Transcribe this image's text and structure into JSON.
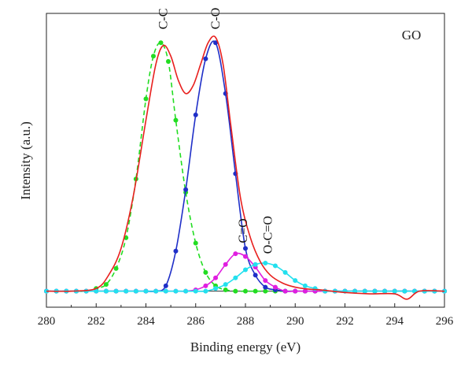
{
  "chart_data": {
    "type": "line",
    "title": "",
    "sample_label": "GO",
    "xlabel": "Binding energy (eV)",
    "ylabel": "Intensity (a.u.)",
    "xlim": [
      280,
      296
    ],
    "ylim": [
      -0.06,
      1.04
    ],
    "x_ticks": [
      "280",
      "282",
      "284",
      "286",
      "288",
      "290",
      "292",
      "294",
      "296"
    ],
    "peak_labels": [
      {
        "text": "C-C",
        "x": 284.7,
        "y": 0.98
      },
      {
        "text": "C-O",
        "x": 286.8,
        "y": 0.98
      },
      {
        "text": "C=O",
        "x": 287.9,
        "y": 0.18
      },
      {
        "text": "O-C=O",
        "x": 288.9,
        "y": 0.14
      }
    ],
    "grid": false,
    "envelope": {
      "color": "#e8201e",
      "x": [
        280.0,
        281.0,
        282.0,
        282.5,
        283.0,
        283.5,
        284.0,
        284.4,
        284.7,
        285.0,
        285.3,
        285.6,
        285.9,
        286.2,
        286.5,
        286.8,
        287.1,
        287.4,
        287.8,
        288.2,
        288.6,
        289.0,
        289.5,
        290.0,
        290.5,
        291.0,
        292.0,
        293.0,
        294.0,
        294.5,
        295.0,
        296.0
      ],
      "y": [
        0.0,
        0.0,
        0.01,
        0.06,
        0.16,
        0.36,
        0.64,
        0.85,
        0.92,
        0.88,
        0.79,
        0.74,
        0.77,
        0.85,
        0.93,
        0.95,
        0.85,
        0.63,
        0.35,
        0.2,
        0.11,
        0.06,
        0.03,
        0.015,
        0.008,
        0.005,
        -0.005,
        -0.01,
        -0.01,
        -0.03,
        0.0,
        0.0
      ]
    },
    "series": [
      {
        "name": "C-C",
        "color": "#22dd22",
        "dashed": true,
        "x": [
          280.0,
          280.4,
          280.8,
          281.2,
          281.6,
          282.0,
          282.4,
          282.8,
          283.2,
          283.6,
          284.0,
          284.3,
          284.6,
          284.9,
          285.2,
          285.6,
          286.0,
          286.4,
          286.8,
          287.2,
          287.6,
          288.0,
          288.4,
          288.8,
          289.2,
          289.6,
          290.0,
          290.4,
          290.8,
          291.2,
          291.6,
          292.0,
          292.4,
          292.8,
          293.2,
          293.6,
          294.0,
          294.4,
          294.8,
          295.2,
          295.6,
          296.0
        ],
        "y": [
          0.0,
          0.0,
          0.0,
          0.0,
          0.0,
          0.01,
          0.025,
          0.085,
          0.2,
          0.42,
          0.72,
          0.88,
          0.93,
          0.86,
          0.64,
          0.37,
          0.18,
          0.07,
          0.02,
          0.005,
          0.0,
          0.0,
          0.0,
          0.0,
          0.0,
          0.0,
          0.0,
          0.0,
          0.0,
          0.0,
          0.0,
          0.0,
          0.0,
          0.0,
          0.0,
          0.0,
          0.0,
          0.0,
          0.0,
          0.0,
          0.0,
          0.0
        ]
      },
      {
        "name": "C-O",
        "color": "#1f2fc8",
        "dashed": false,
        "x": [
          280.0,
          280.4,
          280.8,
          281.2,
          281.6,
          282.0,
          282.4,
          282.8,
          283.2,
          283.6,
          284.0,
          284.4,
          284.8,
          285.2,
          285.6,
          286.0,
          286.4,
          286.8,
          287.2,
          287.6,
          288.0,
          288.4,
          288.8,
          289.2,
          289.6,
          290.0,
          290.4,
          290.8,
          291.2,
          291.6,
          292.0,
          292.4,
          292.8,
          293.2,
          293.6,
          294.0,
          294.4,
          294.8,
          295.2,
          295.6,
          296.0
        ],
        "y": [
          0.0,
          0.0,
          0.0,
          0.0,
          0.0,
          0.0,
          0.0,
          0.0,
          0.0,
          0.0,
          0.0,
          0.0,
          0.02,
          0.15,
          0.38,
          0.66,
          0.87,
          0.93,
          0.74,
          0.44,
          0.16,
          0.06,
          0.015,
          0.005,
          0.0,
          0.0,
          0.0,
          0.0,
          0.0,
          0.0,
          0.0,
          0.0,
          0.0,
          0.0,
          0.0,
          0.0,
          0.0,
          0.0,
          0.0,
          0.0,
          0.0
        ]
      },
      {
        "name": "C=O",
        "color": "#e01ee0",
        "dashed": false,
        "x": [
          280.0,
          280.4,
          280.8,
          281.2,
          281.6,
          282.0,
          282.4,
          282.8,
          283.2,
          283.6,
          284.0,
          284.4,
          284.8,
          285.2,
          285.6,
          286.0,
          286.4,
          286.8,
          287.2,
          287.6,
          288.0,
          288.4,
          288.8,
          289.2,
          289.6,
          290.0,
          290.4,
          290.8,
          291.2,
          291.6,
          292.0,
          292.4,
          292.8,
          293.2,
          293.6,
          294.0,
          294.4,
          294.8,
          295.2,
          295.6,
          296.0
        ],
        "y": [
          0.0,
          0.0,
          0.0,
          0.0,
          0.0,
          0.0,
          0.0,
          0.0,
          0.0,
          0.0,
          0.0,
          0.0,
          0.0,
          0.0,
          0.0,
          0.005,
          0.02,
          0.05,
          0.1,
          0.14,
          0.13,
          0.09,
          0.04,
          0.015,
          0.0,
          0.0,
          0.0,
          0.0,
          0.0,
          0.0,
          0.0,
          0.0,
          0.0,
          0.0,
          0.0,
          0.0,
          0.0,
          0.0,
          0.0,
          0.0,
          0.0
        ]
      },
      {
        "name": "O-C=O",
        "color": "#22e0ee",
        "dashed": false,
        "x": [
          280.0,
          280.4,
          280.8,
          281.2,
          281.6,
          282.0,
          282.4,
          282.8,
          283.2,
          283.6,
          284.0,
          284.4,
          284.8,
          285.2,
          285.6,
          286.0,
          286.4,
          286.8,
          287.2,
          287.6,
          288.0,
          288.4,
          288.8,
          289.2,
          289.6,
          290.0,
          290.4,
          290.8,
          291.2,
          291.6,
          292.0,
          292.4,
          292.8,
          293.2,
          293.6,
          294.0,
          294.4,
          294.8,
          295.2,
          295.6,
          296.0
        ],
        "y": [
          0.0,
          0.0,
          0.0,
          0.0,
          0.0,
          0.0,
          0.0,
          0.0,
          0.0,
          0.0,
          0.0,
          0.0,
          0.0,
          0.0,
          0.0,
          0.0,
          0.0,
          0.01,
          0.025,
          0.05,
          0.08,
          0.1,
          0.105,
          0.095,
          0.07,
          0.04,
          0.02,
          0.01,
          0.0,
          0.0,
          0.0,
          0.0,
          0.0,
          0.0,
          0.0,
          0.0,
          0.0,
          0.0,
          0.0,
          0.0,
          0.0
        ]
      }
    ]
  }
}
